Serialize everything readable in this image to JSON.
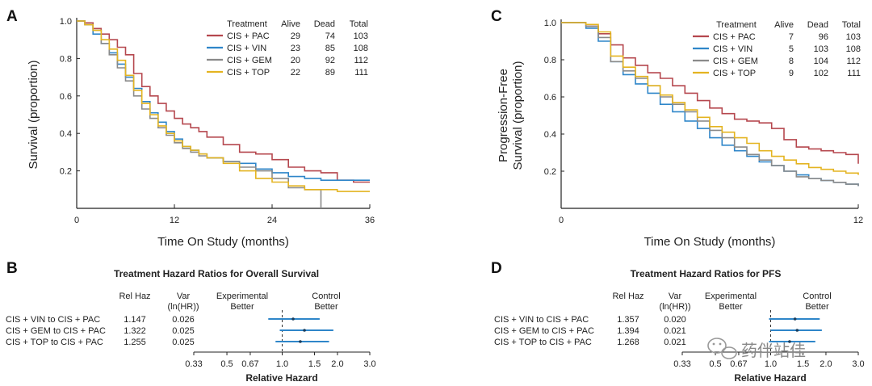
{
  "colors": {
    "CIS + PAC": "#b5474e",
    "CIS + VIN": "#2f86c9",
    "CIS + GEM": "#8a8a8a",
    "CIS + TOP": "#e4b421",
    "axis": "#222222"
  },
  "watermark": "药伴站佳",
  "chart_data": [
    {
      "panel": "A",
      "type": "line",
      "step": true,
      "ylabel": "Survival (proportion)",
      "xlabel": "Time On Study (months)",
      "xlim": [
        0,
        36
      ],
      "ylim": [
        0,
        1.0
      ],
      "xticks": [
        0,
        12,
        24,
        36
      ],
      "yticks": [
        "1.0",
        "0.8",
        "0.6",
        "0.4",
        "0.2"
      ],
      "ytick_values": [
        1.0,
        0.8,
        0.6,
        0.4,
        0.2
      ],
      "legend_headers": [
        "Treatment",
        "Alive",
        "Dead",
        "Total"
      ],
      "legend_rows": [
        [
          "CIS + PAC",
          "29",
          "74",
          "103"
        ],
        [
          "CIS + VIN",
          "23",
          "85",
          "108"
        ],
        [
          "CIS + GEM",
          "20",
          "92",
          "112"
        ],
        [
          "CIS + TOP",
          "22",
          "89",
          "111"
        ]
      ],
      "series": [
        {
          "name": "CIS + PAC",
          "x": [
            0,
            1,
            2,
            3,
            4,
            5,
            6,
            7,
            8,
            9,
            10,
            11,
            12,
            13,
            14,
            15,
            16,
            18,
            20,
            22,
            24,
            26,
            28,
            30,
            32,
            34,
            36
          ],
          "y": [
            1.0,
            0.99,
            0.96,
            0.93,
            0.9,
            0.86,
            0.82,
            0.72,
            0.65,
            0.6,
            0.56,
            0.52,
            0.48,
            0.45,
            0.43,
            0.41,
            0.38,
            0.34,
            0.3,
            0.29,
            0.26,
            0.22,
            0.2,
            0.19,
            0.15,
            0.14,
            0.14
          ]
        },
        {
          "name": "CIS + VIN",
          "x": [
            0,
            1,
            2,
            3,
            4,
            5,
            6,
            7,
            8,
            9,
            10,
            11,
            12,
            13,
            14,
            15,
            16,
            18,
            20,
            22,
            24,
            26,
            28,
            30,
            32,
            34,
            36
          ],
          "y": [
            1.0,
            0.98,
            0.93,
            0.88,
            0.83,
            0.77,
            0.7,
            0.64,
            0.57,
            0.51,
            0.46,
            0.41,
            0.37,
            0.33,
            0.31,
            0.29,
            0.27,
            0.25,
            0.24,
            0.21,
            0.19,
            0.17,
            0.16,
            0.15,
            0.15,
            0.15,
            0.15
          ]
        },
        {
          "name": "CIS + GEM",
          "x": [
            0,
            1,
            2,
            3,
            4,
            5,
            6,
            7,
            8,
            9,
            10,
            11,
            12,
            13,
            14,
            15,
            16,
            18,
            20,
            22,
            24,
            26,
            28,
            29,
            30
          ],
          "y": [
            1.0,
            0.98,
            0.95,
            0.88,
            0.82,
            0.75,
            0.68,
            0.6,
            0.53,
            0.48,
            0.43,
            0.39,
            0.35,
            0.32,
            0.3,
            0.28,
            0.27,
            0.25,
            0.22,
            0.2,
            0.16,
            0.11,
            0.1,
            0.1,
            0.0
          ]
        },
        {
          "name": "CIS + TOP",
          "x": [
            0,
            1,
            2,
            3,
            4,
            5,
            6,
            7,
            8,
            9,
            10,
            11,
            12,
            13,
            14,
            15,
            16,
            18,
            20,
            22,
            24,
            26,
            28,
            30,
            32,
            34,
            36
          ],
          "y": [
            1.0,
            0.98,
            0.95,
            0.9,
            0.85,
            0.79,
            0.71,
            0.63,
            0.56,
            0.5,
            0.44,
            0.4,
            0.36,
            0.33,
            0.31,
            0.29,
            0.27,
            0.24,
            0.2,
            0.16,
            0.14,
            0.12,
            0.1,
            0.1,
            0.09,
            0.09,
            0.09
          ]
        }
      ]
    },
    {
      "panel": "C",
      "type": "line",
      "step": true,
      "ylabel_lines": [
        "Progression-Free",
        "Survival (proportion)"
      ],
      "xlabel": "Time On Study (months)",
      "xlim": [
        0,
        12
      ],
      "ylim": [
        0,
        1.0
      ],
      "xticks": [
        0,
        12
      ],
      "yticks": [
        "1.0",
        "0.8",
        "0.6",
        "0.4",
        "0.2"
      ],
      "ytick_values": [
        1.0,
        0.8,
        0.6,
        0.4,
        0.2
      ],
      "legend_headers": [
        "Treatment",
        "Alive",
        "Dead",
        "Total"
      ],
      "legend_rows": [
        [
          "CIS + PAC",
          "7",
          "96",
          "103"
        ],
        [
          "CIS + VIN",
          "5",
          "103",
          "108"
        ],
        [
          "CIS + GEM",
          "8",
          "104",
          "112"
        ],
        [
          "CIS + TOP",
          "9",
          "102",
          "111"
        ]
      ],
      "series": [
        {
          "name": "CIS + PAC",
          "x": [
            0,
            0.5,
            1,
            1.5,
            2,
            2.5,
            3,
            3.5,
            4,
            4.5,
            5,
            5.5,
            6,
            6.5,
            7,
            7.5,
            8,
            8.5,
            9,
            9.5,
            10,
            10.5,
            11,
            11.5,
            12
          ],
          "y": [
            1.0,
            1.0,
            0.98,
            0.94,
            0.88,
            0.81,
            0.77,
            0.73,
            0.7,
            0.66,
            0.62,
            0.58,
            0.54,
            0.51,
            0.48,
            0.47,
            0.46,
            0.43,
            0.37,
            0.33,
            0.32,
            0.31,
            0.3,
            0.29,
            0.24
          ]
        },
        {
          "name": "CIS + VIN",
          "x": [
            0,
            0.5,
            1,
            1.5,
            2,
            2.5,
            3,
            3.5,
            4,
            4.5,
            5,
            5.5,
            6,
            6.5,
            7,
            7.5,
            8,
            8.5,
            9,
            9.5,
            10,
            10.5,
            11,
            11.5,
            12
          ],
          "y": [
            1.0,
            1.0,
            0.97,
            0.9,
            0.79,
            0.72,
            0.67,
            0.62,
            0.56,
            0.52,
            0.47,
            0.43,
            0.38,
            0.34,
            0.31,
            0.28,
            0.25,
            0.23,
            0.2,
            0.18,
            0.16,
            0.15,
            0.14,
            0.13,
            0.12
          ]
        },
        {
          "name": "CIS + GEM",
          "x": [
            0,
            0.5,
            1,
            1.5,
            2,
            2.5,
            3,
            3.5,
            4,
            4.5,
            5,
            5.5,
            6,
            6.5,
            7,
            7.5,
            8,
            8.5,
            9,
            9.5,
            10,
            10.5,
            11,
            11.5,
            12
          ],
          "y": [
            1.0,
            1.0,
            0.98,
            0.92,
            0.79,
            0.74,
            0.7,
            0.66,
            0.6,
            0.56,
            0.52,
            0.47,
            0.42,
            0.38,
            0.33,
            0.29,
            0.26,
            0.23,
            0.2,
            0.17,
            0.16,
            0.15,
            0.14,
            0.13,
            0.12
          ]
        },
        {
          "name": "CIS + TOP",
          "x": [
            0,
            0.5,
            1,
            1.5,
            2,
            2.5,
            3,
            3.5,
            4,
            4.5,
            5,
            5.5,
            6,
            6.5,
            7,
            7.5,
            8,
            8.5,
            9,
            9.5,
            10,
            10.5,
            11,
            11.5,
            12
          ],
          "y": [
            1.0,
            1.0,
            0.99,
            0.95,
            0.82,
            0.76,
            0.71,
            0.66,
            0.61,
            0.57,
            0.53,
            0.49,
            0.44,
            0.41,
            0.38,
            0.35,
            0.31,
            0.28,
            0.26,
            0.24,
            0.22,
            0.21,
            0.2,
            0.19,
            0.18
          ]
        }
      ]
    },
    {
      "panel": "B",
      "type": "forest",
      "title": "Treatment Hazard Ratios for Overall Survival",
      "headers": {
        "relhaz": "Rel Haz",
        "var": [
          "Var",
          "(ln(HR))"
        ],
        "experimental": [
          "Experimental",
          "Better"
        ],
        "control": [
          "Control",
          "Better"
        ]
      },
      "rows": [
        {
          "label": "CIS + VIN to CIS + PAC",
          "relhaz": "1.147",
          "var": "0.026",
          "hr": 1.147,
          "lo": 0.84,
          "hi": 1.6
        },
        {
          "label": "CIS + GEM to CIS + PAC",
          "relhaz": "1.322",
          "var": "0.025",
          "hr": 1.322,
          "lo": 0.97,
          "hi": 1.9
        },
        {
          "label": "CIS + TOP to CIS + PAC",
          "relhaz": "1.255",
          "var": "0.025",
          "hr": 1.255,
          "lo": 0.92,
          "hi": 1.8
        }
      ],
      "xticks": [
        "0.33",
        "0.5",
        "0.67",
        "1.0",
        "1.5",
        "2.0",
        "3.0"
      ],
      "xtick_values": [
        0.33,
        0.5,
        0.67,
        1.0,
        1.5,
        2.0,
        3.0
      ],
      "xlabel": "Relative Hazard"
    },
    {
      "panel": "D",
      "type": "forest",
      "title": "Treatment Hazard Ratios for PFS",
      "headers": {
        "relhaz": "Rel Haz",
        "var": [
          "Var",
          "(ln(HR))"
        ],
        "experimental": [
          "Experimental",
          "Better"
        ],
        "control": [
          "Control",
          "Better"
        ]
      },
      "rows": [
        {
          "label": "CIS + VIN to CIS + PAC",
          "relhaz": "1.357",
          "var": "0.020",
          "hr": 1.357,
          "lo": 0.98,
          "hi": 1.85
        },
        {
          "label": "CIS + GEM to CIS + PAC",
          "relhaz": "1.394",
          "var": "0.021",
          "hr": 1.394,
          "lo": 1.0,
          "hi": 1.9
        },
        {
          "label": "CIS + TOP to CIS + PAC",
          "relhaz": "1.268",
          "var": "0.021",
          "hr": 1.268,
          "lo": 0.98,
          "hi": 1.75
        }
      ],
      "xticks": [
        "0.33",
        "0.5",
        "0.67",
        "1.0",
        "1.5",
        "2.0",
        "3.0"
      ],
      "xtick_values": [
        0.33,
        0.5,
        0.67,
        1.0,
        1.5,
        2.0,
        3.0
      ],
      "xlabel": "Relative Hazard"
    }
  ]
}
